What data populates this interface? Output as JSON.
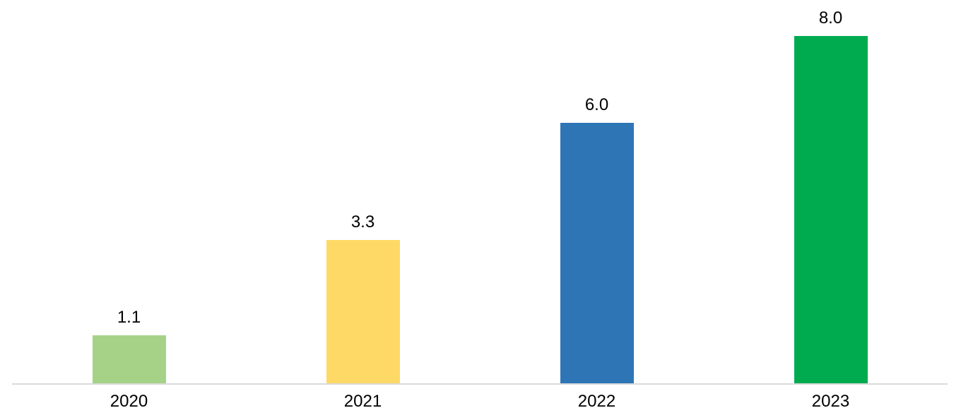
{
  "chart_data": {
    "type": "bar",
    "categories": [
      "2020",
      "2021",
      "2022",
      "2023"
    ],
    "values": [
      1.1,
      3.3,
      6.0,
      8.0
    ],
    "value_labels": [
      "1.1",
      "3.3",
      "6.0",
      "8.0"
    ],
    "title": "",
    "xlabel": "",
    "ylabel": "",
    "ylim": [
      0,
      8.0
    ],
    "grid": false,
    "legend": "none",
    "data_labels_position": "above-bars",
    "bar_colors": [
      "#A6D288",
      "#FFD966",
      "#2E75B6",
      "#00AB50"
    ],
    "axis_line_color": "#D9D9D9",
    "label_color": "#000000",
    "background_color": "#FFFFFF"
  }
}
